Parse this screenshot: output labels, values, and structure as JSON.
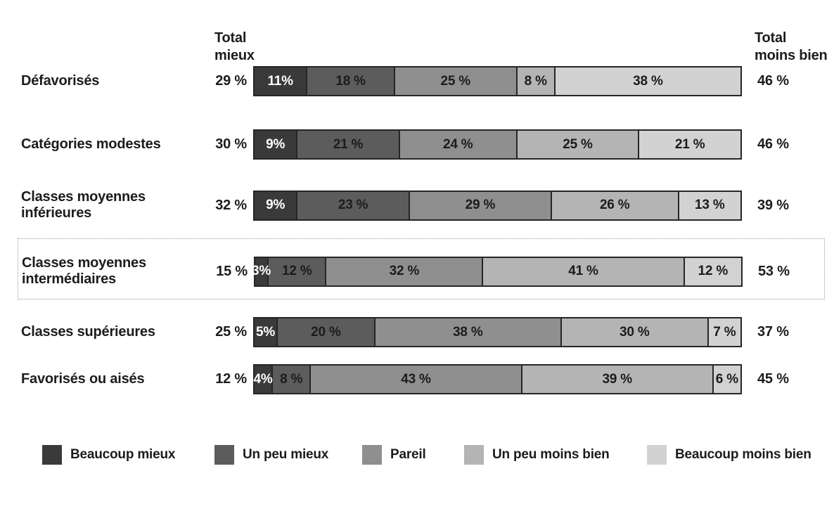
{
  "header": {
    "total_mieux": [
      "Total",
      "mieux"
    ],
    "total_moins_bien": [
      "Total",
      "moins bien"
    ]
  },
  "chart_data": {
    "type": "bar",
    "stacked": true,
    "orientation": "horizontal",
    "unit": "%",
    "xlim": [
      0,
      100
    ],
    "categories": [
      "Défavorisés",
      "Catégories modestes",
      "Classes moyennes inférieures",
      "Classes moyennes intermédiaires",
      "Classes supérieures",
      "Favorisés ou aisés"
    ],
    "series": [
      {
        "name": "Beaucoup mieux",
        "color": "#3a3a3a",
        "values": [
          11,
          9,
          9,
          3,
          5,
          4
        ]
      },
      {
        "name": "Un peu mieux",
        "color": "#5c5c5c",
        "values": [
          18,
          21,
          23,
          12,
          20,
          8
        ]
      },
      {
        "name": "Pareil",
        "color": "#8f8f8f",
        "values": [
          25,
          24,
          29,
          32,
          38,
          43
        ]
      },
      {
        "name": "Un peu moins bien",
        "color": "#b4b4b4",
        "values": [
          8,
          25,
          26,
          41,
          30,
          39
        ]
      },
      {
        "name": "Beaucoup moins bien",
        "color": "#d2d2d2",
        "values": [
          38,
          21,
          13,
          12,
          7,
          6
        ]
      }
    ],
    "totals_mieux": [
      29,
      30,
      32,
      15,
      25,
      12
    ],
    "totals_moins_bien": [
      46,
      46,
      39,
      53,
      37,
      45
    ],
    "highlighted_category_index": 3,
    "rows": [
      {
        "label_lines": [
          "Défavorisés"
        ],
        "total_left": "29 %",
        "total_right": "46 %",
        "highlighted": false,
        "values": [
          11,
          18,
          25,
          8,
          38
        ],
        "labels": [
          "11%",
          "18 %",
          "25 %",
          "8 %",
          "38 %"
        ]
      },
      {
        "label_lines": [
          "Catégories modestes"
        ],
        "total_left": "30 %",
        "total_right": "46 %",
        "highlighted": false,
        "values": [
          9,
          21,
          24,
          25,
          21
        ],
        "labels": [
          "9%",
          "21 %",
          "24 %",
          "25 %",
          "21 %"
        ]
      },
      {
        "label_lines": [
          "Classes moyennes",
          "inférieures"
        ],
        "total_left": "32 %",
        "total_right": "39 %",
        "highlighted": false,
        "values": [
          9,
          23,
          29,
          26,
          13
        ],
        "labels": [
          "9%",
          "23 %",
          "29 %",
          "26 %",
          "13 %"
        ]
      },
      {
        "label_lines": [
          "Classes moyennes",
          "intermédiaires"
        ],
        "total_left": "15 %",
        "total_right": "53 %",
        "highlighted": true,
        "values": [
          3,
          12,
          32,
          41,
          12
        ],
        "labels": [
          "3%",
          "12 %",
          "32 %",
          "41 %",
          "12 %"
        ]
      },
      {
        "label_lines": [
          "Classes supérieures"
        ],
        "total_left": "25 %",
        "total_right": "37 %",
        "highlighted": false,
        "values": [
          5,
          20,
          38,
          30,
          7
        ],
        "labels": [
          "5%",
          "20 %",
          "38 %",
          "30 %",
          "7 %"
        ]
      },
      {
        "label_lines": [
          "Favorisés ou aisés"
        ],
        "total_left": "12 %",
        "total_right": "45 %",
        "highlighted": false,
        "values": [
          4,
          8,
          43,
          39,
          6
        ],
        "labels": [
          "4%",
          "8 %",
          "43 %",
          "39 %",
          "6 %"
        ]
      }
    ]
  },
  "legend": {
    "items": [
      {
        "label": "Beaucoup mieux",
        "color": "#3a3a3a"
      },
      {
        "label": "Un peu mieux",
        "color": "#5c5c5c"
      },
      {
        "label": "Pareil",
        "color": "#8f8f8f"
      },
      {
        "label": "Un peu moins bien",
        "color": "#b4b4b4"
      },
      {
        "label": "Beaucoup moins bien",
        "color": "#d2d2d2"
      }
    ]
  }
}
